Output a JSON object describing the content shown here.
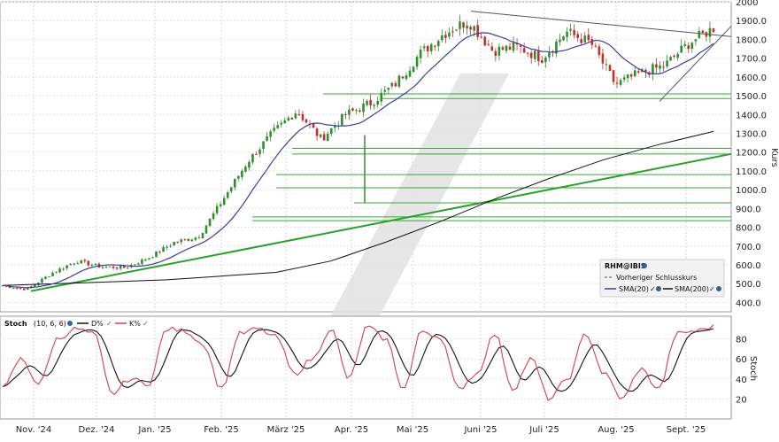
{
  "chart_data": [
    {
      "type": "candlestick",
      "title": "",
      "symbol": "RHM@IBIS",
      "ylabel": "Kurs",
      "ylim": [
        350,
        2000
      ],
      "yticks": [
        "2000",
        "1900.0",
        "1800.0",
        "1700.0",
        "1600.0",
        "1500.0",
        "1400.0",
        "1300.0",
        "1200.0",
        "1100.0",
        "1000.0",
        "900.0",
        "800.0",
        "700.0",
        "600.0",
        "500.0",
        "400.0"
      ],
      "x_labels": [
        "Nov. '24",
        "Dez. '24",
        "Jan. '25",
        "Feb. '25",
        "März '25",
        "Apr. '25",
        "Mai '25",
        "Juni '25",
        "Juli '25",
        "Aug. '25",
        "Sept. '25"
      ],
      "legend": {
        "title": "RHM@IBIS",
        "prev_close": "Vorheriger Schlusskurs",
        "sma20": "SMA(20)",
        "sma200": "SMA(200)"
      },
      "series": [
        {
          "name": "SMA(20)",
          "color": "#3d3d9e"
        },
        {
          "name": "SMA(200)",
          "color": "#111111"
        }
      ],
      "close_anchors": [
        [
          "Nov. '24",
          490
        ],
        [
          "Nov. '24+",
          470
        ],
        [
          "Nov. '24++",
          555
        ],
        [
          "Dez. '24",
          620
        ],
        [
          "Dez. '24+",
          590
        ],
        [
          "Jan. '25",
          585
        ],
        [
          "Jan. '25+",
          640
        ],
        [
          "Feb. '25",
          720
        ],
        [
          "Feb. '25+",
          750
        ],
        [
          "Feb. '25++",
          950
        ],
        [
          "März '25",
          1150
        ],
        [
          "März '25+",
          1300
        ],
        [
          "März '25++",
          1420
        ],
        [
          "Apr. '25",
          1270
        ],
        [
          "Apr. '25+",
          1400
        ],
        [
          "Apr. '25++",
          1460
        ],
        [
          "Mai '25",
          1560
        ],
        [
          "Mai '25+",
          1720
        ],
        [
          "Mai '25++",
          1830
        ],
        [
          "Juni '25",
          1900
        ],
        [
          "Juni '25+",
          1740
        ],
        [
          "Juni '25++",
          1760
        ],
        [
          "Juli '25",
          1700
        ],
        [
          "Juli '25+",
          1840
        ],
        [
          "Juli '25++",
          1780
        ],
        [
          "Aug. '25",
          1560
        ],
        [
          "Aug. '25+",
          1620
        ],
        [
          "Aug. '25++",
          1660
        ],
        [
          "Sept. '25",
          1780
        ],
        [
          "Sept. '25+",
          1860
        ]
      ],
      "support_levels": [
        1510,
        1485,
        1220,
        1190,
        1080,
        1010,
        930,
        855,
        835
      ],
      "trendlines": [
        {
          "from": [
            "Nov. '24",
            460
          ],
          "to": [
            "Sept. '25 end",
            1190
          ],
          "color": "#2aa02a"
        },
        {
          "from": [
            "Juni '25",
            1950
          ],
          "to": [
            "Sept. '25 end",
            1820
          ],
          "color": "#555555"
        },
        {
          "from": [
            "Aug. '25",
            1470
          ],
          "to": [
            "Sept. '25 end",
            1870
          ],
          "color": "#555555"
        }
      ]
    },
    {
      "type": "line",
      "title": "Stoch",
      "params": "(10, 6, 6)",
      "ylabel": "Stoch",
      "ylim": [
        0,
        100
      ],
      "yticks": [
        "80",
        "60",
        "40",
        "20"
      ],
      "series": [
        {
          "name": "D%",
          "color": "#111111"
        },
        {
          "name": "K%",
          "color": "#d0404f"
        }
      ],
      "k_anchors": [
        30,
        60,
        35,
        80,
        90,
        85,
        25,
        40,
        35,
        90,
        88,
        75,
        30,
        85,
        90,
        82,
        45,
        60,
        90,
        40,
        92,
        80,
        30,
        88,
        82,
        30,
        45,
        85,
        30,
        60,
        20,
        40,
        85,
        45,
        20,
        50,
        30,
        85,
        88,
        92
      ]
    }
  ]
}
